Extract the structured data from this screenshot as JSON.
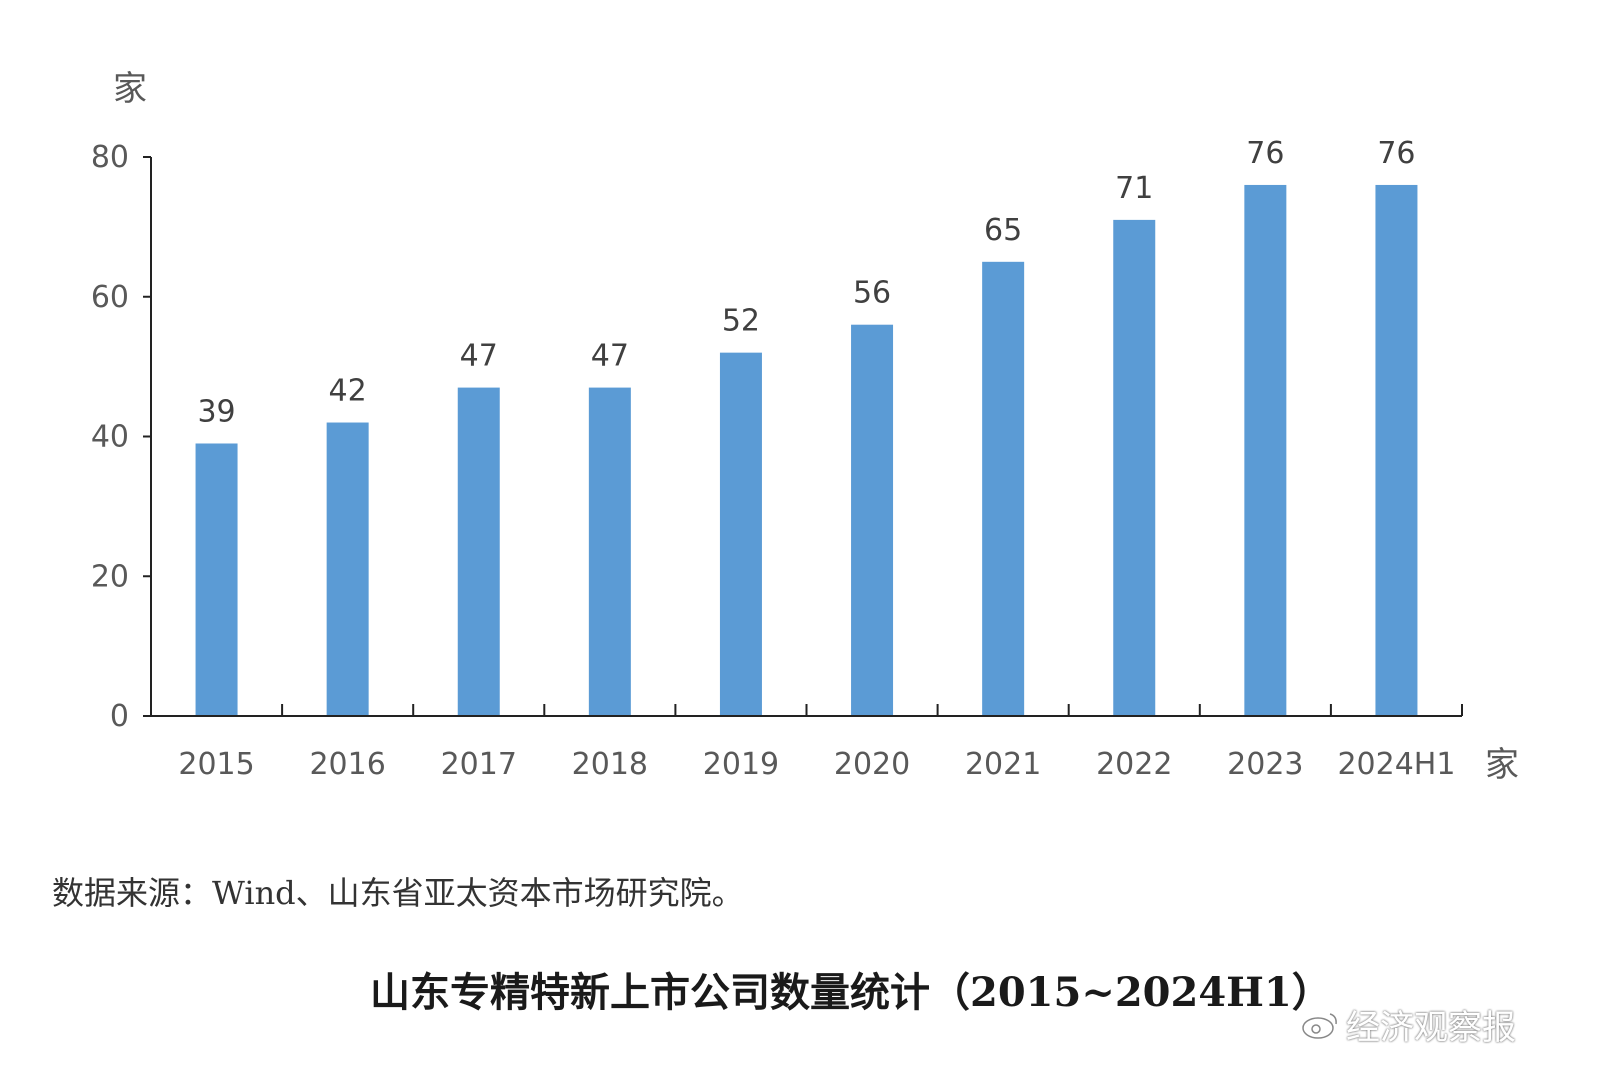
{
  "chart_data": {
    "type": "bar",
    "categories": [
      "2015",
      "2016",
      "2017",
      "2018",
      "2019",
      "2020",
      "2021",
      "2022",
      "2023",
      "2024H1"
    ],
    "values": [
      39,
      42,
      47,
      47,
      52,
      56,
      65,
      71,
      76,
      76
    ],
    "title": "山东专精特新上市公司数量统计（2015~2024H1）",
    "ylabel": "家",
    "xlabel": "家",
    "ylim": [
      0,
      80
    ],
    "yticks": [
      0,
      20,
      40,
      60,
      80
    ],
    "bar_color": "#5B9BD5",
    "grid": false,
    "legend": "none"
  },
  "source_text": "数据来源：Wind、山东省亚太资本市场研究院。",
  "watermark_text": "经济观察报"
}
